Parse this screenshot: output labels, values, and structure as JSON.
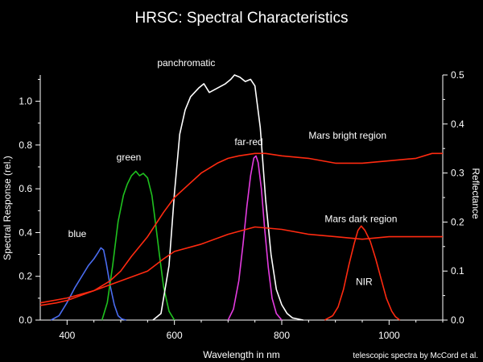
{
  "chart_data": {
    "type": "line",
    "title": "HRSC: Spectral Characteristics",
    "xlabel": "Wavelength in nm",
    "ylabel_left": "Spectral Response (rel.)",
    "ylabel_right": "Reflectance",
    "xlim": [
      350,
      1100
    ],
    "ylim_left": [
      0,
      1.12
    ],
    "ylim_right": [
      0,
      0.5
    ],
    "xticks": [
      400,
      600,
      800,
      1000
    ],
    "yticks_left": [
      0.0,
      0.2,
      0.4,
      0.6,
      0.8,
      1.0
    ],
    "yticks_left_labels": [
      "0.0",
      "0.2",
      "0.4",
      "0.6",
      "0.8",
      "1.0"
    ],
    "yticks_right": [
      0.0,
      0.1,
      0.2,
      0.3,
      0.4,
      0.5
    ],
    "yticks_right_labels": [
      "0.0",
      "0.1",
      "0.2",
      "0.3",
      "0.4",
      "0.5"
    ],
    "grid": false,
    "credit": "telescopic spectra by McCord et al.",
    "series": [
      {
        "name": "blue",
        "axis": "left",
        "color": "#4a6cf0",
        "label_at": [
          402,
          0.38
        ],
        "x": [
          370,
          385,
          400,
          415,
          430,
          440,
          450,
          458,
          463,
          468,
          473,
          480,
          488,
          495,
          502,
          510
        ],
        "y": [
          0.0,
          0.02,
          0.08,
          0.15,
          0.21,
          0.25,
          0.28,
          0.31,
          0.33,
          0.32,
          0.26,
          0.16,
          0.07,
          0.02,
          0.005,
          0.0
        ]
      },
      {
        "name": "green",
        "axis": "left",
        "color": "#1fc21f",
        "label_at": [
          492,
          0.73
        ],
        "x": [
          465,
          475,
          485,
          495,
          505,
          512,
          520,
          528,
          535,
          542,
          550,
          558,
          565,
          572,
          580,
          590,
          600
        ],
        "y": [
          0.0,
          0.08,
          0.25,
          0.45,
          0.57,
          0.62,
          0.66,
          0.68,
          0.66,
          0.67,
          0.65,
          0.57,
          0.44,
          0.3,
          0.15,
          0.04,
          0.0
        ]
      },
      {
        "name": "panchromatic",
        "axis": "left",
        "color": "#ffffff",
        "label_at": [
          568,
          1.16
        ],
        "x": [
          560,
          575,
          590,
          600,
          610,
          620,
          630,
          645,
          655,
          665,
          680,
          695,
          705,
          712,
          722,
          732,
          742,
          750,
          760,
          770,
          780,
          790,
          800,
          810,
          820,
          830,
          840
        ],
        "y": [
          0.0,
          0.03,
          0.25,
          0.58,
          0.85,
          0.96,
          1.02,
          1.06,
          1.08,
          1.04,
          1.06,
          1.08,
          1.1,
          1.12,
          1.11,
          1.09,
          1.1,
          1.07,
          0.88,
          0.55,
          0.3,
          0.14,
          0.07,
          0.03,
          0.01,
          0.005,
          0.0
        ]
      },
      {
        "name": "far-red",
        "axis": "left",
        "color": "#e43ce0",
        "label_at": [
          712,
          0.8
        ],
        "x": [
          700,
          710,
          720,
          728,
          735,
          742,
          748,
          752,
          756,
          762,
          768,
          775,
          782,
          790,
          800
        ],
        "y": [
          0.0,
          0.05,
          0.18,
          0.35,
          0.52,
          0.66,
          0.74,
          0.75,
          0.72,
          0.6,
          0.42,
          0.24,
          0.1,
          0.03,
          0.0
        ]
      },
      {
        "name": "NIR",
        "axis": "left",
        "color": "#ff2a10",
        "label_at": [
          938,
          0.16
        ],
        "x": [
          880,
          895,
          905,
          915,
          925,
          935,
          942,
          948,
          955,
          965,
          975,
          985,
          995,
          1005,
          1012,
          1020
        ],
        "y": [
          0.0,
          0.02,
          0.06,
          0.14,
          0.25,
          0.35,
          0.41,
          0.43,
          0.41,
          0.36,
          0.28,
          0.19,
          0.1,
          0.04,
          0.015,
          0.0
        ]
      },
      {
        "name": "Mars bright region",
        "axis": "right",
        "color": "#ff2a10",
        "label_at": [
          850,
          0.37
        ],
        "x": [
          350,
          380,
          400,
          420,
          450,
          480,
          500,
          520,
          550,
          580,
          600,
          620,
          650,
          680,
          700,
          720,
          750,
          770,
          800,
          850,
          900,
          950,
          1000,
          1050,
          1080,
          1100
        ],
        "y": [
          0.03,
          0.035,
          0.04,
          0.048,
          0.06,
          0.08,
          0.1,
          0.13,
          0.17,
          0.22,
          0.25,
          0.27,
          0.3,
          0.32,
          0.33,
          0.335,
          0.34,
          0.34,
          0.335,
          0.33,
          0.32,
          0.32,
          0.325,
          0.33,
          0.34,
          0.34
        ]
      },
      {
        "name": "Mars dark region",
        "axis": "right",
        "color": "#ff2a10",
        "label_at": [
          880,
          0.2
        ],
        "x": [
          350,
          400,
          450,
          500,
          550,
          580,
          600,
          650,
          700,
          750,
          800,
          850,
          900,
          950,
          1000,
          1050,
          1100
        ],
        "y": [
          0.035,
          0.045,
          0.06,
          0.08,
          0.1,
          0.125,
          0.14,
          0.155,
          0.175,
          0.19,
          0.185,
          0.175,
          0.17,
          0.165,
          0.17,
          0.17,
          0.17
        ]
      }
    ]
  }
}
